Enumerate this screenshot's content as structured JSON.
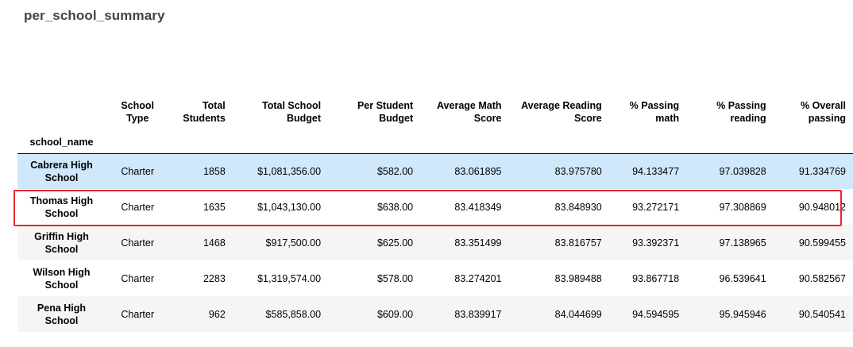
{
  "title": "per_school_summary",
  "index_name": "school_name",
  "highlight_color": "#e8262b",
  "hover_row_color": "#cfe8fc",
  "columns": [
    "School Type",
    "Total Students",
    "Total School Budget",
    "Per Student Budget",
    "Average Math Score",
    "Average Reading Score",
    "% Passing math",
    "% Passing reading",
    "% Overall passing"
  ],
  "rows": [
    {
      "school_name": "Cabrera High School",
      "cells": [
        "Charter",
        "1858",
        "$1,081,356.00",
        "$582.00",
        "83.061895",
        "83.975780",
        "94.133477",
        "97.039828",
        "91.334769"
      ]
    },
    {
      "school_name": "Thomas High School",
      "cells": [
        "Charter",
        "1635",
        "$1,043,130.00",
        "$638.00",
        "83.418349",
        "83.848930",
        "93.272171",
        "97.308869",
        "90.948012"
      ]
    },
    {
      "school_name": "Griffin High School",
      "cells": [
        "Charter",
        "1468",
        "$917,500.00",
        "$625.00",
        "83.351499",
        "83.816757",
        "93.392371",
        "97.138965",
        "90.599455"
      ]
    },
    {
      "school_name": "Wilson High School",
      "cells": [
        "Charter",
        "2283",
        "$1,319,574.00",
        "$578.00",
        "83.274201",
        "83.989488",
        "93.867718",
        "96.539641",
        "90.582567"
      ]
    },
    {
      "school_name": "Pena High School",
      "cells": [
        "Charter",
        "962",
        "$585,858.00",
        "$609.00",
        "83.839917",
        "84.044699",
        "94.594595",
        "95.945946",
        "90.540541"
      ]
    }
  ]
}
